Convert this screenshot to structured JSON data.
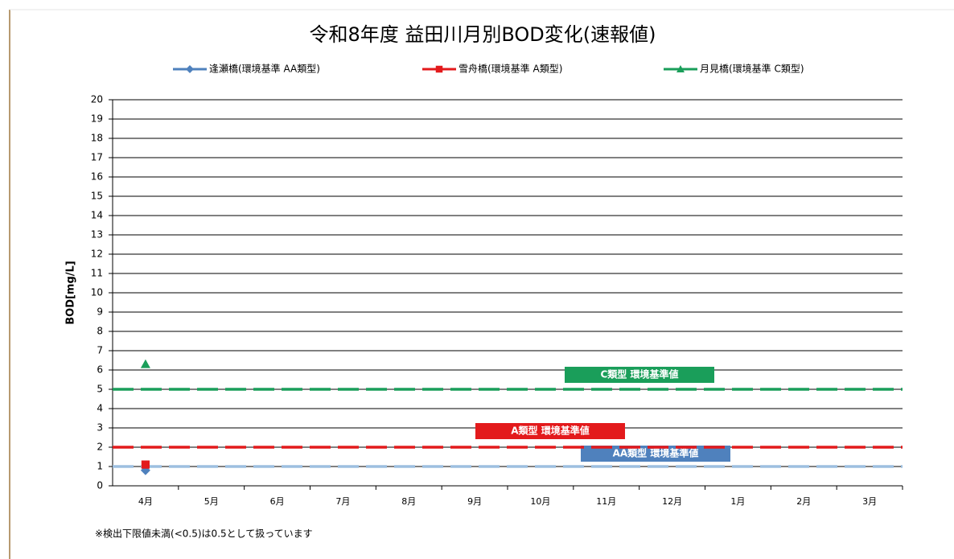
{
  "chart_data": {
    "type": "line",
    "title": "令和8年度  益田川月別BOD変化(速報値)",
    "y_label": "BOD[mg/L]",
    "categories": [
      "4月",
      "5月",
      "6月",
      "7月",
      "8月",
      "9月",
      "10月",
      "11月",
      "12月",
      "1月",
      "2月",
      "3月"
    ],
    "series": [
      {
        "name": "逢瀬橋(環境基準  AA類型)",
        "color": "#4f81bd",
        "marker": "diamond",
        "values": [
          0.8,
          null,
          null,
          null,
          null,
          null,
          null,
          null,
          null,
          null,
          null,
          null
        ]
      },
      {
        "name": "雪舟橋(環境基準  A類型)",
        "color": "#e31a1c",
        "marker": "square",
        "values": [
          1.1,
          null,
          null,
          null,
          null,
          null,
          null,
          null,
          null,
          null,
          null,
          null
        ]
      },
      {
        "name": "月見橋(環境基準  C類型)",
        "color": "#1a9e5a",
        "marker": "triangle",
        "values": [
          6.3,
          null,
          null,
          null,
          null,
          null,
          null,
          null,
          null,
          null,
          null,
          null
        ]
      }
    ],
    "reference_lines": [
      {
        "value": 1,
        "label": "AA類型  環境基準値",
        "color": "#9dbfe0",
        "label_color": "#4f81bd"
      },
      {
        "value": 2,
        "label": "A類型  環境基準値",
        "color": "#e31a1c",
        "label_color": "#e31a1c"
      },
      {
        "value": 5,
        "label": "C類型  環境基準値",
        "color": "#1a9e5a",
        "label_color": "#1a9e5a"
      }
    ],
    "ylim": [
      0,
      20
    ],
    "yticks": [
      0,
      1,
      2,
      3,
      4,
      5,
      6,
      7,
      8,
      9,
      10,
      11,
      12,
      13,
      14,
      15,
      16,
      17,
      18,
      19,
      20
    ],
    "grid": true,
    "legend": "top",
    "note": "※検出下限値未満(<0.5)は0.5として扱っています"
  }
}
